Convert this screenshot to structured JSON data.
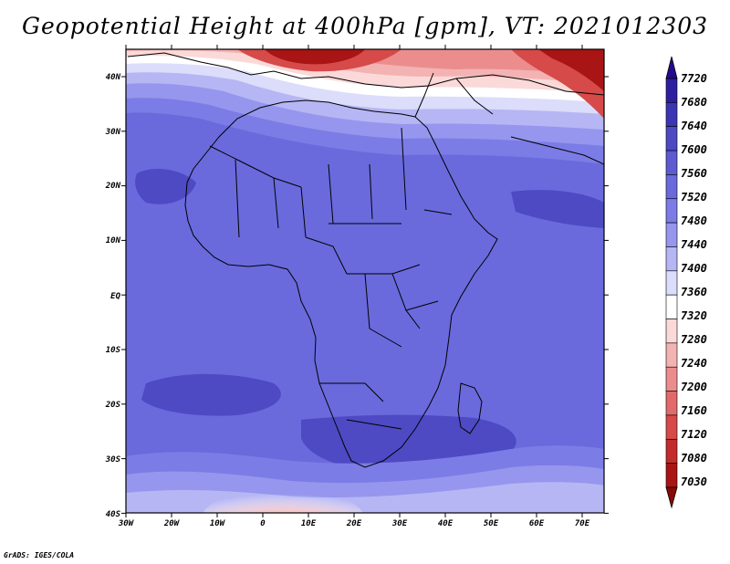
{
  "title": "Geopotential Height at 400hPa [gpm], VT: 2021012303",
  "credit": "GrADS: IGES/COLA",
  "map": {
    "variable": "geopotential height 400hPa",
    "units": "gpm",
    "longitude_ticks": [
      "30W",
      "20W",
      "10W",
      "0",
      "10E",
      "20E",
      "30E",
      "40E",
      "50E",
      "60E",
      "70E"
    ],
    "latitude_ticks": [
      "40N",
      "30N",
      "20N",
      "10N",
      "EQ",
      "10S",
      "20S",
      "30S",
      "40S"
    ],
    "lon_range": [
      -30,
      75
    ],
    "lat_range": [
      -40,
      45
    ]
  },
  "colorbar": {
    "labels": [
      "7720",
      "7680",
      "7640",
      "7600",
      "7560",
      "7520",
      "7480",
      "7440",
      "7400",
      "7360",
      "7320",
      "7280",
      "7240",
      "7200",
      "7160",
      "7120",
      "7080",
      "7030"
    ],
    "colors": [
      "#240a8c",
      "#2d1fa0",
      "#3c36b4",
      "#4d4ac3",
      "#5c5bd0",
      "#6a6add",
      "#7c7ce6",
      "#9696ee",
      "#b6b6f5",
      "#dcdcfb",
      "#ffffff",
      "#fbd9d9",
      "#f4b3b3",
      "#ec8d8d",
      "#e26a6a",
      "#d64a4a",
      "#c42c2c",
      "#a91414",
      "#8a0808"
    ]
  }
}
